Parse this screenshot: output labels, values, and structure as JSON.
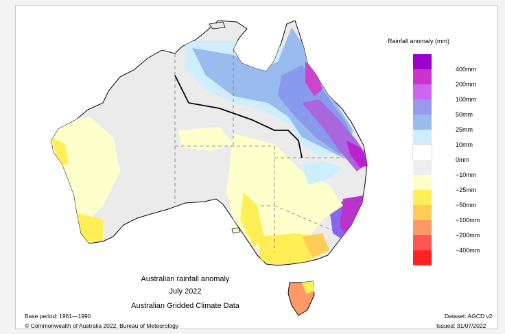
{
  "map": {
    "title": "Australian rainfall anomaly",
    "period": "July 2022",
    "dataset_name": "Australian Gridded Climate Data",
    "base_period": "Base period: 1961—1990",
    "dataset": "Dataset: AGCD v2",
    "copyright": "© Commonwealth of Australia 2022, Bureau of Meteorology",
    "issued": "Issued: 31/07/2022"
  },
  "legend": {
    "title": "Rainfall anomaly (mm)",
    "labels": [
      "400mm",
      "200mm",
      "100mm",
      "50mm",
      "25mm",
      "10mm",
      "0mm",
      "−10mm",
      "−25mm",
      "−50mm",
      "−100mm",
      "−200mm",
      "−400mm"
    ],
    "colors": [
      "#9b00cc",
      "#cc33cc",
      "#cc66ee",
      "#9999ee",
      "#99bbee",
      "#cceeff",
      "#ffffff",
      "#eeeeee",
      "#ffffcc",
      "#ffee55",
      "#ffcc55",
      "#ff9966",
      "#ff5555",
      "#ff2222"
    ]
  }
}
